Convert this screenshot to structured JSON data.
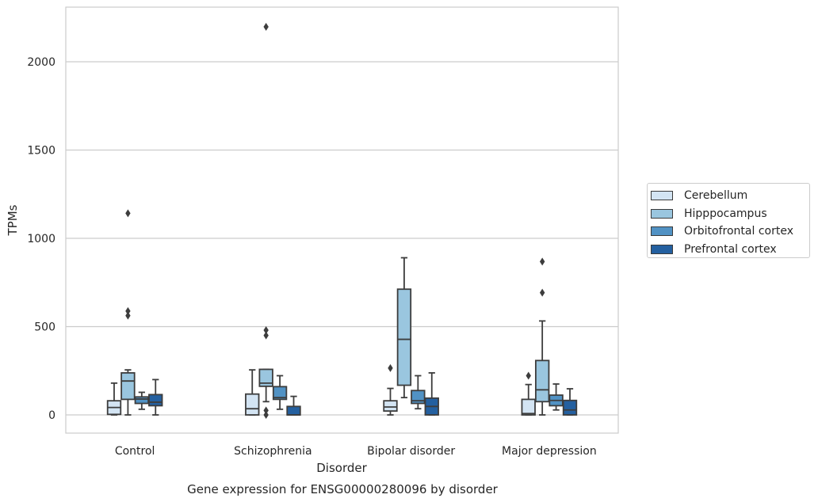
{
  "chart_data": {
    "type": "box",
    "title": "",
    "caption": "Gene expression for ENSG00000280096 by disorder",
    "xlabel": "Disorder",
    "ylabel": "TPMs",
    "ylim": [
      -110,
      2330
    ],
    "yticks": [
      0,
      500,
      1000,
      1500,
      2000
    ],
    "grid": "horizontal",
    "legend_position": "right",
    "categories": [
      "Control",
      "Schizophrenia",
      "Bipolar disorder",
      "Major depression"
    ],
    "series": [
      {
        "name": "Cerebellum",
        "color": "#d3e4f3",
        "boxes": [
          {
            "whislo": 0,
            "q1": 3,
            "med": 42,
            "q3": 80,
            "whishi": 180,
            "fliers": []
          },
          {
            "whislo": 0,
            "q1": 0,
            "med": 35,
            "q3": 118,
            "whishi": 255,
            "fliers": []
          },
          {
            "whislo": 0,
            "q1": 22,
            "med": 45,
            "q3": 80,
            "whishi": 150,
            "fliers": [
              265
            ]
          },
          {
            "whislo": 0,
            "q1": 0,
            "med": 8,
            "q3": 88,
            "whishi": 172,
            "fliers": [
              222
            ]
          }
        ]
      },
      {
        "name": "Hipppocampus",
        "color": "#9ac6df",
        "boxes": [
          {
            "whislo": 0,
            "q1": 88,
            "med": 192,
            "q3": 238,
            "whishi": 255,
            "fliers": [
              562,
              588,
              1142
            ]
          },
          {
            "whislo": 75,
            "q1": 162,
            "med": 180,
            "q3": 258,
            "whishi": 258,
            "fliers": [
              0,
              25,
              450,
              480,
              2198
            ]
          },
          {
            "whislo": 98,
            "q1": 168,
            "med": 428,
            "q3": 712,
            "whishi": 890,
            "fliers": []
          },
          {
            "whislo": 0,
            "q1": 75,
            "med": 142,
            "q3": 308,
            "whishi": 532,
            "fliers": [
              692,
              868
            ]
          }
        ]
      },
      {
        "name": "Orbitofrontal cortex",
        "color": "#5192c4",
        "boxes": [
          {
            "whislo": 32,
            "q1": 65,
            "med": 90,
            "q3": 102,
            "whishi": 128,
            "fliers": []
          },
          {
            "whislo": 32,
            "q1": 88,
            "med": 98,
            "q3": 160,
            "whishi": 222,
            "fliers": []
          },
          {
            "whislo": 35,
            "q1": 65,
            "med": 80,
            "q3": 138,
            "whishi": 222,
            "fliers": []
          },
          {
            "whislo": 28,
            "q1": 52,
            "med": 82,
            "q3": 112,
            "whishi": 175,
            "fliers": []
          }
        ]
      },
      {
        "name": "Prefrontal cortex",
        "color": "#2460a0",
        "boxes": [
          {
            "whislo": 0,
            "q1": 52,
            "med": 72,
            "q3": 115,
            "whishi": 200,
            "fliers": []
          },
          {
            "whislo": 0,
            "q1": 0,
            "med": 0,
            "q3": 48,
            "whishi": 105,
            "fliers": []
          },
          {
            "whislo": 0,
            "q1": 0,
            "med": 48,
            "q3": 95,
            "whishi": 238,
            "fliers": []
          },
          {
            "whislo": 0,
            "q1": 0,
            "med": 28,
            "q3": 82,
            "whishi": 148,
            "fliers": []
          }
        ]
      }
    ]
  }
}
